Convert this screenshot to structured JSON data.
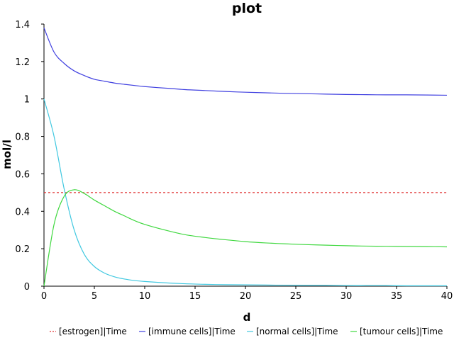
{
  "chart_data": {
    "type": "line",
    "title": "plot",
    "xlabel": "d",
    "ylabel": "mol/l",
    "xlim": [
      0,
      40
    ],
    "ylim": [
      0,
      1.4
    ],
    "x_ticks": [
      0,
      5,
      10,
      15,
      20,
      25,
      30,
      35,
      40
    ],
    "x_tick_labels": [
      "0",
      "5",
      "10",
      "15",
      "20",
      "25",
      "30",
      "35",
      "40"
    ],
    "y_ticks": [
      0,
      0.2,
      0.4,
      0.6,
      0.8,
      1,
      1.2,
      1.4
    ],
    "y_tick_labels": [
      "0",
      "0.2",
      "0.4",
      "0.6",
      "0.8",
      "1",
      "1.2",
      "1.4"
    ],
    "grid": false,
    "legend_position": "bottom",
    "x": [
      0,
      1,
      2,
      3,
      4,
      5,
      6,
      7,
      8,
      9,
      10,
      12,
      14,
      16,
      18,
      20,
      22,
      24,
      26,
      28,
      30,
      32,
      34,
      36,
      38,
      40
    ],
    "series": [
      {
        "name": "[estrogen]|Time",
        "color": "#e03030",
        "dash": "dashed",
        "values": [
          0.5,
          0.5,
          0.5,
          0.5,
          0.5,
          0.5,
          0.5,
          0.5,
          0.5,
          0.5,
          0.5,
          0.5,
          0.5,
          0.5,
          0.5,
          0.5,
          0.5,
          0.5,
          0.5,
          0.5,
          0.5,
          0.5,
          0.5,
          0.5,
          0.5,
          0.5
        ]
      },
      {
        "name": "[immune cells]|Time",
        "color": "#4040e0",
        "dash": "solid",
        "values": [
          1.38,
          1.25,
          1.19,
          1.15,
          1.125,
          1.105,
          1.095,
          1.085,
          1.078,
          1.072,
          1.066,
          1.058,
          1.05,
          1.045,
          1.04,
          1.036,
          1.033,
          1.03,
          1.028,
          1.026,
          1.024,
          1.023,
          1.022,
          1.022,
          1.021,
          1.02
        ]
      },
      {
        "name": "[normal cells]|Time",
        "color": "#40c8e0",
        "dash": "solid",
        "values": [
          1.0,
          0.8,
          0.52,
          0.3,
          0.17,
          0.105,
          0.07,
          0.05,
          0.038,
          0.03,
          0.025,
          0.018,
          0.013,
          0.01,
          0.008,
          0.007,
          0.006,
          0.005,
          0.004,
          0.004,
          0.003,
          0.003,
          0.003,
          0.002,
          0.002,
          0.002
        ]
      },
      {
        "name": "[tumour cells]|Time",
        "color": "#40d840",
        "dash": "solid",
        "values": [
          0.0,
          0.33,
          0.48,
          0.515,
          0.495,
          0.46,
          0.43,
          0.4,
          0.375,
          0.35,
          0.33,
          0.3,
          0.275,
          0.26,
          0.248,
          0.238,
          0.231,
          0.226,
          0.222,
          0.219,
          0.216,
          0.214,
          0.213,
          0.212,
          0.211,
          0.21
        ]
      }
    ]
  }
}
